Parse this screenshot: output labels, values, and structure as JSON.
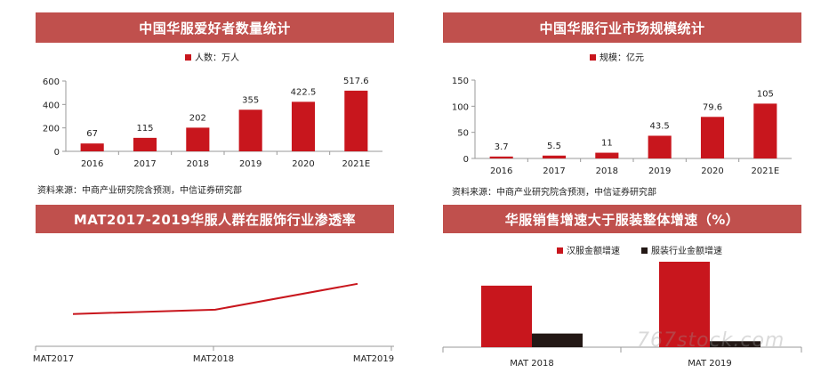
{
  "colors": {
    "banner": "#c0504d",
    "red": "#c8161d",
    "dark": "#231815",
    "axis": "#999999"
  },
  "panels": {
    "p1": {
      "title": "中国华服爱好者数量统计",
      "source": "资料来源：中商产业研究院含预测，中信证券研究部"
    },
    "p2": {
      "title": "中国华服行业市场规模统计",
      "source": "资料来源：中商产业研究院含预测，中信证券研究部"
    },
    "p3": {
      "title": "MAT2017-2019华服人群在服饰行业渗透率"
    },
    "p4": {
      "title": "华服销售增速大于服装整体增速（%）"
    }
  },
  "watermark": "767stock.com",
  "chart_data": [
    {
      "type": "bar",
      "title": "中国华服爱好者数量统计",
      "legend": "人数：万人",
      "categories": [
        "2016",
        "2017",
        "2018",
        "2019",
        "2020",
        "2021E"
      ],
      "values": [
        67,
        115,
        202,
        355,
        422.5,
        517.6
      ],
      "labels": [
        "67",
        "115",
        "202",
        "355",
        "422.5",
        "517.6"
      ],
      "ylim": [
        0,
        600
      ],
      "yticks": [
        "0",
        "200",
        "400",
        "600"
      ],
      "tickvals": [
        0,
        200,
        400,
        600
      ]
    },
    {
      "type": "bar",
      "title": "中国华服行业市场规模统计",
      "legend": "规模：亿元",
      "categories": [
        "2016",
        "2017",
        "2018",
        "2019",
        "2020",
        "2021E"
      ],
      "values": [
        3.7,
        5.5,
        11,
        43.5,
        79.6,
        105
      ],
      "labels": [
        "3.7",
        "5.5",
        "11",
        "43.5",
        "79.6",
        "105"
      ],
      "ylim": [
        0,
        150
      ],
      "yticks": [
        "0",
        "50",
        "100",
        "150"
      ],
      "tickvals": [
        0,
        50,
        100,
        150
      ]
    },
    {
      "type": "line",
      "title": "MAT2017-2019华服人群在服饰行业渗透率",
      "categories": [
        "MAT2017",
        "MAT2018",
        "MAT2019"
      ],
      "values": [
        0.3,
        0.34,
        0.58
      ]
    },
    {
      "type": "bar",
      "title": "华服销售增速大于服装整体增速（%）",
      "categories": [
        "MAT 2018",
        "MAT 2019"
      ],
      "series": [
        {
          "name": "汉服金额增速",
          "values": [
            0.72,
            1.0
          ]
        },
        {
          "name": "服装行业金额增速",
          "values": [
            0.16,
            0.07
          ]
        }
      ]
    }
  ]
}
